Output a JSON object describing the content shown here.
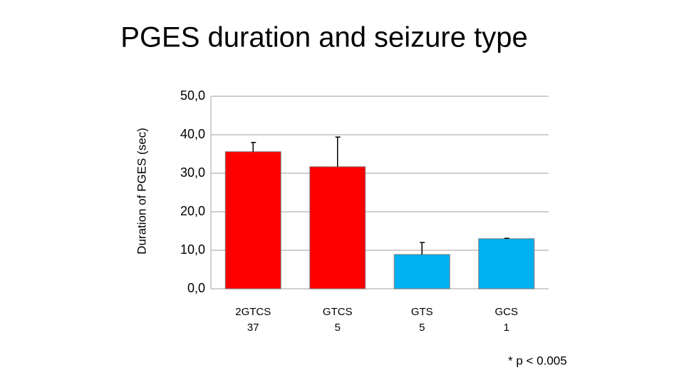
{
  "chart_data": {
    "type": "bar",
    "title": "PGES duration and seizure type",
    "y_label": "Duration of PGES (sec)",
    "categories": [
      "2GTCS",
      "GTCS",
      "GTS",
      "GCS"
    ],
    "category_n": [
      37,
      5,
      5,
      1
    ],
    "values": [
      35.6,
      31.7,
      8.9,
      13.0
    ],
    "errors": [
      2.4,
      7.7,
      3.1,
      0.1
    ],
    "colors": [
      "#ff0000",
      "#ff0000",
      "#00b0f0",
      "#00b0f0"
    ],
    "ylim": [
      0,
      50
    ],
    "yticks": [
      {
        "value": 0,
        "label": "0,0"
      },
      {
        "value": 10,
        "label": "10,0"
      },
      {
        "value": 20,
        "label": "20,0"
      },
      {
        "value": 30,
        "label": "30,0"
      },
      {
        "value": 40,
        "label": "40,0"
      },
      {
        "value": 50,
        "label": "50,0"
      }
    ],
    "grid": true,
    "annotation": "* p < 0.005"
  }
}
